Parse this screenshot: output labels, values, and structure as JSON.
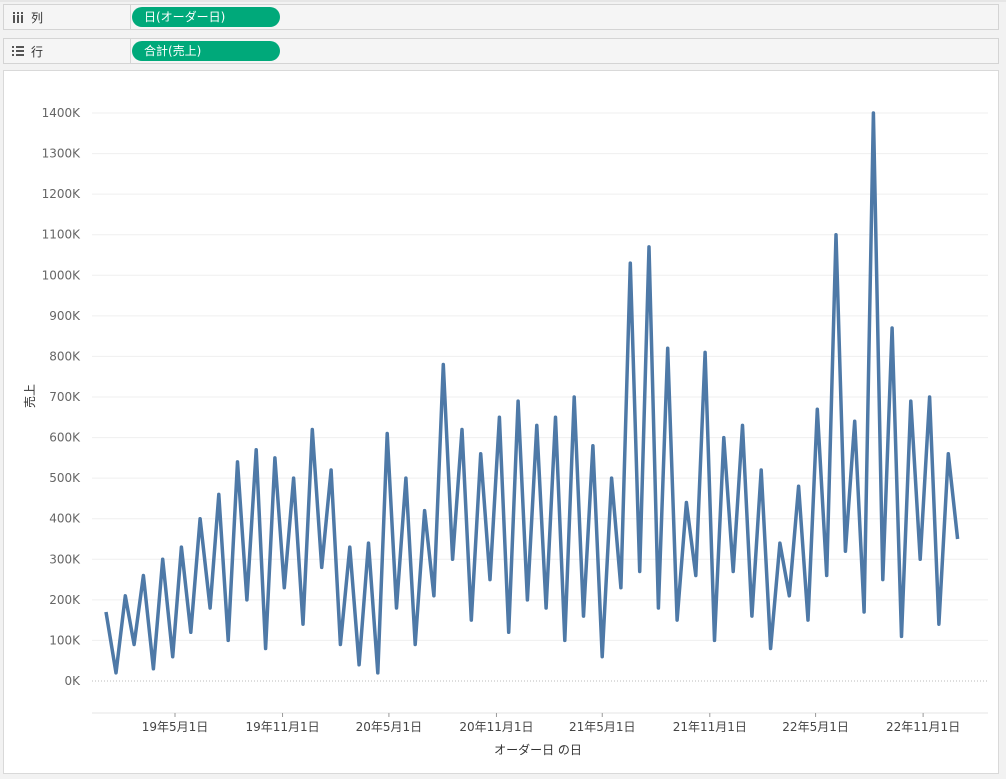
{
  "shelves": {
    "columns": {
      "label": "列",
      "pill": "日(オーダー日)"
    },
    "rows": {
      "label": "行",
      "pill": "合計(売上)"
    }
  },
  "colors": {
    "line": "#4e79a7",
    "pill": "#00a97a"
  },
  "chart_data": {
    "type": "line",
    "xlabel": "オーダー日 の日",
    "ylabel": "売上",
    "grid": true,
    "ylim": [
      0,
      1400000
    ],
    "yticks": [
      0,
      100000,
      200000,
      300000,
      400000,
      500000,
      600000,
      700000,
      800000,
      900000,
      1000000,
      1100000,
      1200000,
      1300000,
      1400000
    ],
    "ytick_labels": [
      "0K",
      "100K",
      "200K",
      "300K",
      "400K",
      "500K",
      "600K",
      "700K",
      "800K",
      "900K",
      "1000K",
      "1100K",
      "1200K",
      "1300K",
      "1400K"
    ],
    "xlim": [
      "2018-12-10",
      "2023-02-20"
    ],
    "xticks": [
      "2019-05-01",
      "2019-11-01",
      "2020-05-01",
      "2020-11-01",
      "2021-05-01",
      "2021-11-01",
      "2022-05-01",
      "2022-11-01"
    ],
    "xtick_labels": [
      "19年5月1日",
      "19年11月1日",
      "20年5月1日",
      "20年11月1日",
      "21年5月1日",
      "21年11月1日",
      "22年5月1日",
      "22年11月1日"
    ],
    "series": [
      {
        "values_note": "daily sales, approximate peaks read from chart",
        "x": [
          "2019-01-03",
          "2019-01-20",
          "2019-02-05",
          "2019-02-20",
          "2019-03-08",
          "2019-03-25",
          "2019-04-10",
          "2019-04-27",
          "2019-05-12",
          "2019-05-28",
          "2019-06-13",
          "2019-06-30",
          "2019-07-15",
          "2019-07-31",
          "2019-08-16",
          "2019-09-01",
          "2019-09-17",
          "2019-10-03",
          "2019-10-19",
          "2019-11-04",
          "2019-11-20",
          "2019-12-06",
          "2019-12-22",
          "2020-01-07",
          "2020-01-23",
          "2020-02-08",
          "2020-02-24",
          "2020-03-11",
          "2020-03-27",
          "2020-04-12",
          "2020-04-28",
          "2020-05-14",
          "2020-05-30",
          "2020-06-15",
          "2020-07-01",
          "2020-07-17",
          "2020-08-02",
          "2020-08-18",
          "2020-09-03",
          "2020-09-19",
          "2020-10-05",
          "2020-10-21",
          "2020-11-06",
          "2020-11-22",
          "2020-12-08",
          "2020-12-24",
          "2021-01-09",
          "2021-01-25",
          "2021-02-10",
          "2021-02-26",
          "2021-03-14",
          "2021-03-30",
          "2021-04-15",
          "2021-05-01",
          "2021-05-17",
          "2021-06-02",
          "2021-06-18",
          "2021-07-04",
          "2021-07-20",
          "2021-08-05",
          "2021-08-21",
          "2021-09-06",
          "2021-09-22",
          "2021-10-08",
          "2021-10-24",
          "2021-11-09",
          "2021-11-25",
          "2021-12-11",
          "2021-12-27",
          "2022-01-12",
          "2022-01-28",
          "2022-02-13",
          "2022-03-01",
          "2022-03-17",
          "2022-04-02",
          "2022-04-18",
          "2022-05-04",
          "2022-05-20",
          "2022-06-05",
          "2022-06-21",
          "2022-07-07",
          "2022-07-23",
          "2022-08-08",
          "2022-08-24",
          "2022-09-09",
          "2022-09-25",
          "2022-10-11",
          "2022-10-27",
          "2022-11-12",
          "2022-11-28",
          "2022-12-14",
          "2022-12-30"
        ],
        "y": [
          170000,
          20000,
          210000,
          90000,
          260000,
          30000,
          300000,
          60000,
          330000,
          120000,
          400000,
          180000,
          460000,
          100000,
          540000,
          200000,
          570000,
          80000,
          550000,
          230000,
          500000,
          140000,
          620000,
          280000,
          520000,
          90000,
          330000,
          40000,
          340000,
          20000,
          610000,
          180000,
          500000,
          90000,
          420000,
          210000,
          780000,
          300000,
          620000,
          150000,
          560000,
          250000,
          650000,
          120000,
          690000,
          200000,
          630000,
          180000,
          650000,
          100000,
          700000,
          160000,
          580000,
          60000,
          500000,
          230000,
          1030000,
          270000,
          1070000,
          180000,
          820000,
          150000,
          440000,
          260000,
          810000,
          100000,
          600000,
          270000,
          630000,
          160000,
          520000,
          80000,
          340000,
          210000,
          480000,
          150000,
          670000,
          260000,
          1100000,
          320000,
          640000,
          170000,
          1400000,
          250000,
          870000,
          110000,
          690000,
          300000,
          700000,
          140000,
          560000,
          350000
        ]
      }
    ]
  }
}
